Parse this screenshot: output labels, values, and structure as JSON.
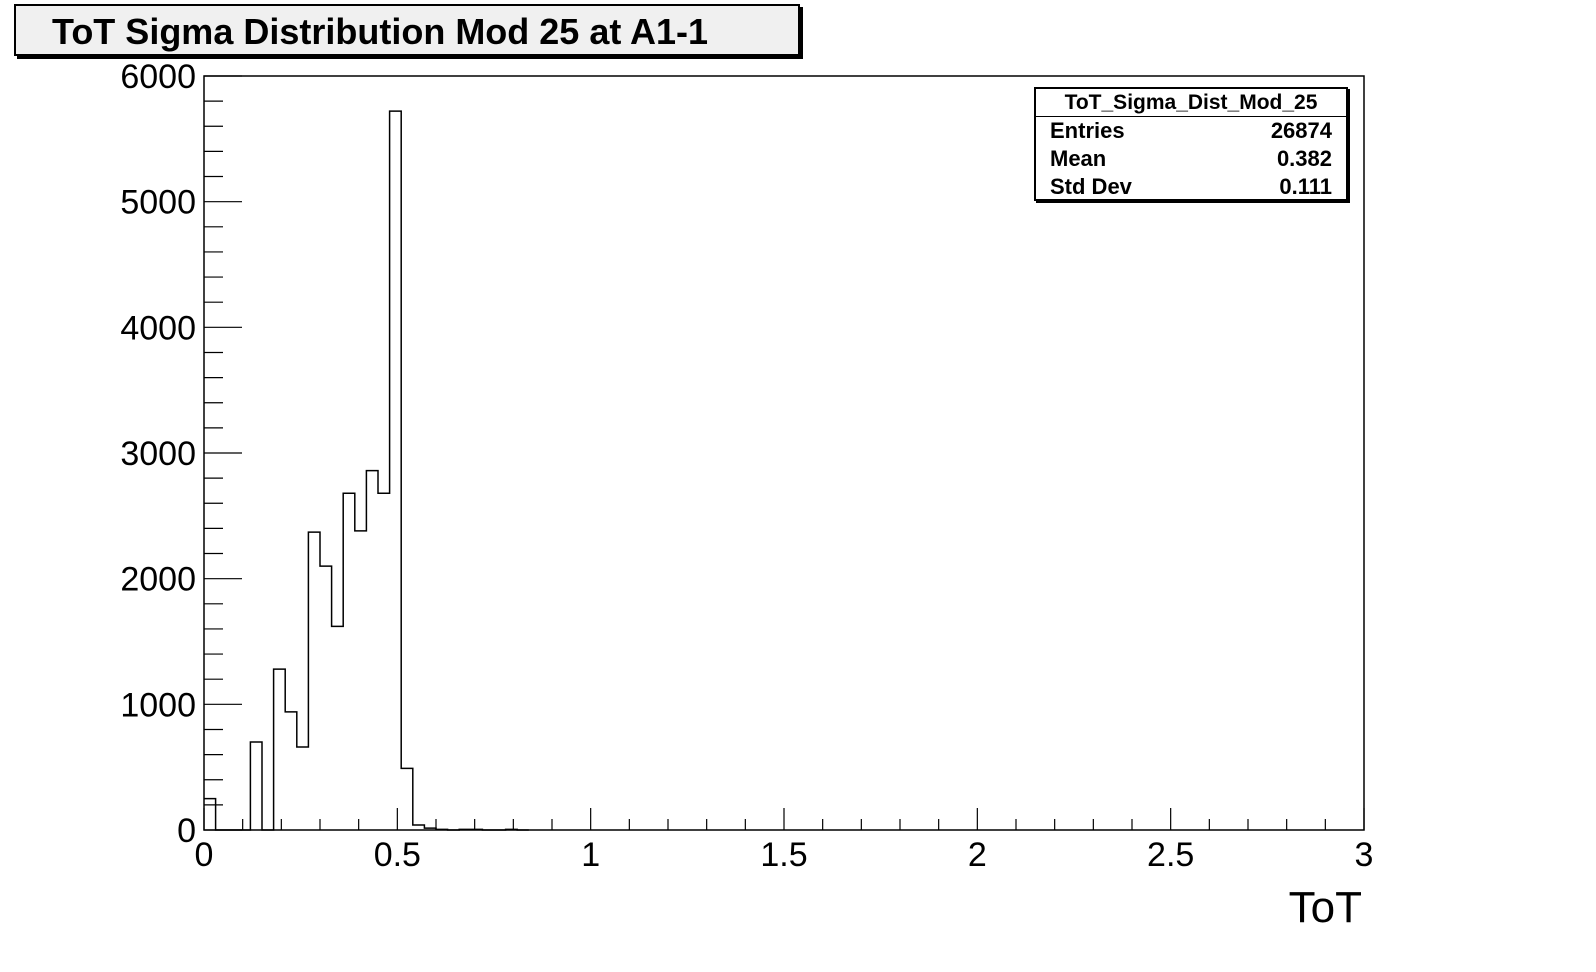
{
  "chart_data": {
    "type": "histogram",
    "title": "ToT Sigma Distribution Mod 25 at A1-1",
    "xlabel": "ToT",
    "ylabel": "",
    "xlim": [
      0,
      3
    ],
    "ylim": [
      0,
      6000
    ],
    "x_ticks": [
      "0",
      "0.5",
      "1",
      "1.5",
      "2",
      "2.5",
      "3"
    ],
    "y_ticks": [
      "0",
      "1000",
      "2000",
      "3000",
      "4000",
      "5000",
      "6000"
    ],
    "bin_width": 0.03,
    "bin_starts": [
      0.0,
      0.03,
      0.06,
      0.09,
      0.12,
      0.15,
      0.18,
      0.21,
      0.24,
      0.27,
      0.3,
      0.33,
      0.36,
      0.39,
      0.42,
      0.45,
      0.48,
      0.51,
      0.54,
      0.57,
      0.6,
      0.63,
      0.66,
      0.69,
      0.72,
      0.75,
      0.78,
      0.81
    ],
    "values": [
      250,
      0,
      0,
      0,
      700,
      0,
      1280,
      940,
      660,
      2370,
      2100,
      1620,
      2680,
      2380,
      2860,
      2680,
      5720,
      490,
      40,
      15,
      5,
      0,
      5,
      5,
      0,
      0,
      5,
      0
    ],
    "grid": false,
    "stats_box": {
      "name": "ToT_Sigma_Dist_Mod_25",
      "rows": [
        {
          "label": "Entries",
          "value": "26874"
        },
        {
          "label": "Mean",
          "value": "0.382"
        },
        {
          "label": "Std Dev",
          "value": "0.111"
        }
      ]
    }
  }
}
